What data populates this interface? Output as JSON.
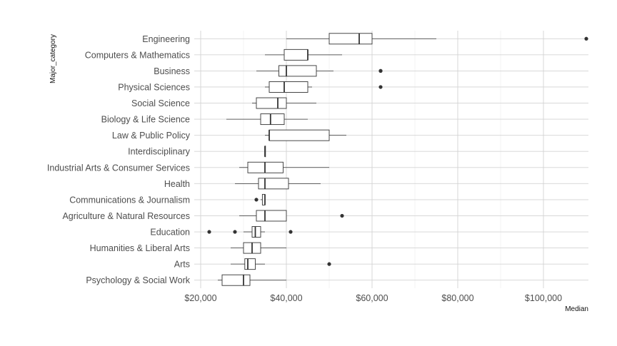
{
  "chart_data": {
    "type": "boxplot",
    "orientation": "horizontal",
    "title": "",
    "xlabel": "Median",
    "ylabel": "Major_category",
    "xlim": [
      18500,
      110500
    ],
    "x_ticks": [
      20000,
      40000,
      60000,
      80000,
      100000
    ],
    "x_tick_labels": [
      "$20,000",
      "$40,000",
      "$60,000",
      "$80,000",
      "$100,000"
    ],
    "grid": true,
    "categories": [
      "Engineering",
      "Computers & Mathematics",
      "Business",
      "Physical Sciences",
      "Social Science",
      "Biology & Life Science",
      "Law & Public Policy",
      "Interdisciplinary",
      "Industrial Arts & Consumer Services",
      "Health",
      "Communications & Journalism",
      "Agriculture & Natural Resources",
      "Education",
      "Humanities & Liberal Arts",
      "Arts",
      "Psychology & Social Work"
    ],
    "boxes": [
      {
        "min": 40000,
        "q1": 50000,
        "median": 57000,
        "q3": 60000,
        "max": 75000,
        "outliers": [
          110000
        ]
      },
      {
        "min": 35000,
        "q1": 39500,
        "median": 45000,
        "q3": 45000,
        "max": 53000,
        "outliers": []
      },
      {
        "min": 33000,
        "q1": 38250,
        "median": 40000,
        "q3": 47000,
        "max": 51000,
        "outliers": [
          62000,
          62000
        ]
      },
      {
        "min": 35000,
        "q1": 36000,
        "median": 39500,
        "q3": 45000,
        "max": 46000,
        "outliers": [
          62000
        ]
      },
      {
        "min": 32000,
        "q1": 33000,
        "median": 38000,
        "q3": 40000,
        "max": 47000,
        "outliers": []
      },
      {
        "min": 26000,
        "q1": 34000,
        "median": 36300,
        "q3": 39500,
        "max": 45000,
        "outliers": []
      },
      {
        "min": 35000,
        "q1": 36000,
        "median": 36000,
        "q3": 50000,
        "max": 54000,
        "outliers": []
      },
      {
        "min": 35000,
        "q1": 35000,
        "median": 35000,
        "q3": 35000,
        "max": 35000,
        "outliers": []
      },
      {
        "min": 29000,
        "q1": 31000,
        "median": 35000,
        "q3": 39250,
        "max": 50000,
        "outliers": []
      },
      {
        "min": 28000,
        "q1": 33500,
        "median": 35000,
        "q3": 40500,
        "max": 48000,
        "outliers": []
      },
      {
        "min": 34000,
        "q1": 34400,
        "median": 35000,
        "q3": 35000,
        "max": 35000,
        "outliers": [
          33000
        ]
      },
      {
        "min": 29000,
        "q1": 33000,
        "median": 35000,
        "q3": 40000,
        "max": 40000,
        "outliers": [
          53000
        ]
      },
      {
        "min": 30000,
        "q1": 32000,
        "median": 32750,
        "q3": 34000,
        "max": 35000,
        "outliers": [
          22000,
          28000,
          41000
        ]
      },
      {
        "min": 27000,
        "q1": 30000,
        "median": 32000,
        "q3": 34000,
        "max": 40000,
        "outliers": []
      },
      {
        "min": 27000,
        "q1": 30300,
        "median": 31000,
        "q3": 32750,
        "max": 35000,
        "outliers": [
          50000
        ]
      },
      {
        "min": 24000,
        "q1": 25000,
        "median": 30000,
        "q3": 31500,
        "max": 40000,
        "outliers": []
      }
    ],
    "colors": {
      "box_fill": "#ffffff",
      "box_stroke": "#333333",
      "outlier": "#333333",
      "grid_major": "#d3d3d3",
      "grid_minor": "#ebebeb",
      "text": "#4d4d4d"
    }
  }
}
